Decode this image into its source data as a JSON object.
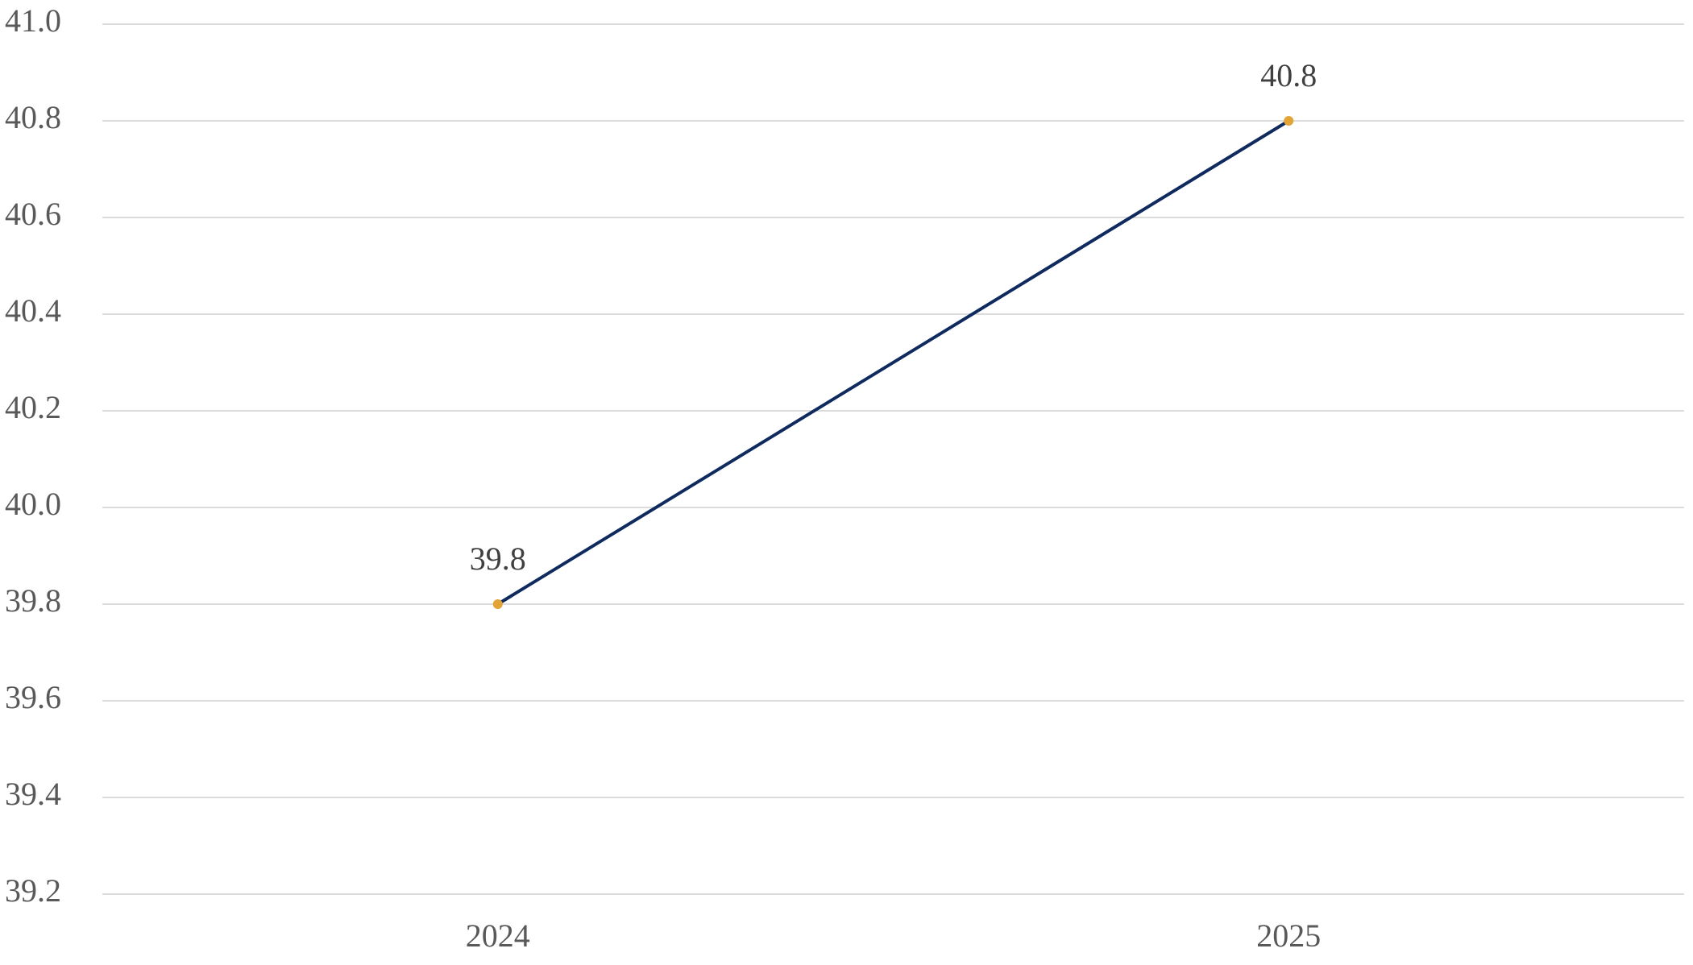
{
  "chart_data": {
    "type": "line",
    "categories": [
      "2024",
      "2025"
    ],
    "values": [
      39.8,
      40.8
    ],
    "color": "#0e2a5e",
    "marker_color": "#e3a437",
    "ylim": [
      39.2,
      41
    ],
    "yticks": [
      39.2,
      39.4,
      39.6,
      39.8,
      {
        "value": 40,
        "label": "40.0"
      },
      40.2,
      40.4,
      40.6,
      40.8,
      {
        "value": 41,
        "label": "41.0"
      }
    ],
    "grid": true
  }
}
